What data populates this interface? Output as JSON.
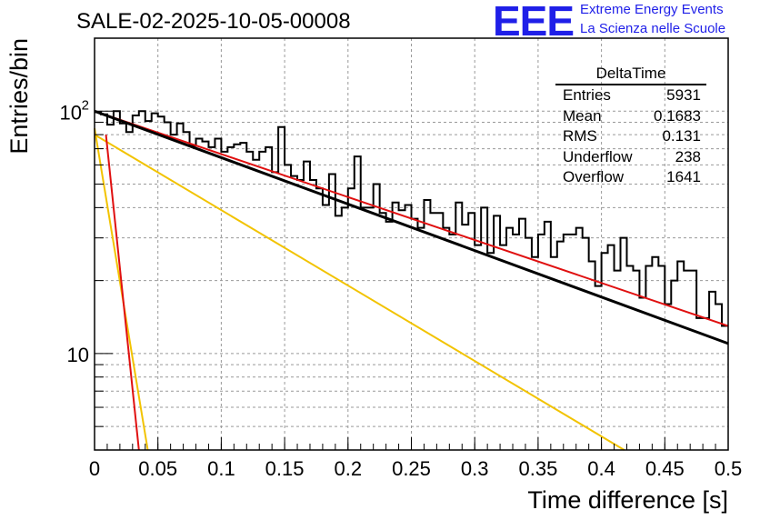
{
  "title": "SALE-02-2025-10-05-00008",
  "logo": {
    "text": "EEE",
    "line1": "Extreme Energy Events",
    "line2": "La Scienza nelle Scuole",
    "color": "#1f1fe8"
  },
  "stats_box": {
    "title": "DeltaTime",
    "rows": [
      {
        "label": "Entries",
        "value": "5931"
      },
      {
        "label": "Mean",
        "value": "0.1683"
      },
      {
        "label": "RMS",
        "value": "0.131"
      },
      {
        "label": "Underflow",
        "value": "238"
      },
      {
        "label": "Overflow",
        "value": "1641"
      }
    ]
  },
  "chart_data": {
    "type": "histogram",
    "xlabel": "Time difference [s]",
    "ylabel": "Entries/bin",
    "xlim": [
      0,
      0.5
    ],
    "ylim": [
      4,
      200
    ],
    "yscale": "log",
    "grid": true,
    "x_ticks": [
      "0",
      "0.05",
      "0.1",
      "0.15",
      "0.2",
      "0.25",
      "0.3",
      "0.35",
      "0.4",
      "0.45",
      "0.5"
    ],
    "x_tick_values": [
      0,
      0.05,
      0.1,
      0.15,
      0.2,
      0.25,
      0.3,
      0.35,
      0.4,
      0.45,
      0.5
    ],
    "y_major_ticks": [
      10,
      100
    ],
    "y_tick_labels": [
      "10",
      "10^2"
    ],
    "bin_width": 0.005,
    "histogram_values": [
      99,
      97,
      88,
      100,
      89,
      82,
      96,
      100,
      91,
      98,
      95,
      90,
      80,
      89,
      82,
      72,
      77,
      75,
      71,
      77,
      68,
      71,
      73,
      74,
      68,
      63,
      68,
      71,
      56,
      86,
      60,
      54,
      52,
      62,
      52,
      48,
      41,
      55,
      37,
      40,
      48,
      65,
      40,
      40,
      50,
      38,
      35,
      42,
      39,
      41,
      36,
      33,
      43,
      38,
      38,
      33,
      31,
      42,
      34,
      38,
      28,
      40,
      26,
      37,
      28,
      33,
      31,
      36,
      30,
      25,
      31,
      35,
      25,
      29,
      31,
      31,
      33,
      30,
      24,
      19,
      26,
      28,
      22,
      30,
      23,
      22,
      17,
      23,
      25,
      23,
      16,
      20,
      24,
      22,
      22,
      14,
      14,
      18,
      16,
      13
    ],
    "histogram_color": "#000000",
    "series": [
      {
        "name": "fit total",
        "type": "line",
        "color": "#000000",
        "x": [
          0,
          0.5
        ],
        "y": [
          100,
          11
        ]
      },
      {
        "name": "fit component slow",
        "type": "line",
        "color": "#e01010",
        "x": [
          0,
          0.5
        ],
        "y": [
          100,
          13
        ]
      },
      {
        "name": "fast component A",
        "type": "line",
        "color": "#e01010",
        "x": [
          0.009,
          0.035
        ],
        "y": [
          80,
          4
        ]
      },
      {
        "name": "fast component B",
        "type": "line",
        "color": "#f2c300",
        "x": [
          0,
          0.042
        ],
        "y": [
          85,
          4
        ]
      },
      {
        "name": "medium component",
        "type": "line",
        "color": "#f2c300",
        "x": [
          0,
          0.418
        ],
        "y": [
          80,
          4
        ]
      }
    ]
  }
}
